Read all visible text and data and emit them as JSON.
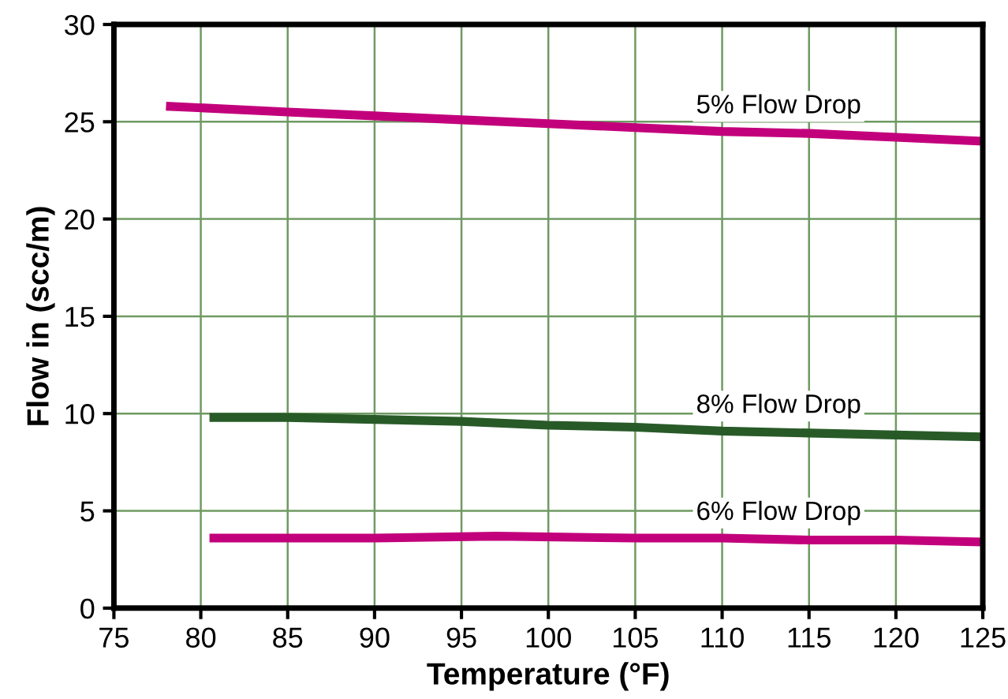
{
  "chart_data": {
    "type": "line",
    "xlabel": "Temperature (°F)",
    "ylabel": "Flow in (scc/m)",
    "xlim": [
      75,
      125
    ],
    "xticks": [
      75,
      80,
      85,
      90,
      95,
      100,
      105,
      110,
      115,
      120,
      125
    ],
    "ylim": [
      0,
      30
    ],
    "yticks": [
      0,
      5,
      10,
      15,
      20,
      25,
      30
    ],
    "grid": true,
    "legend": false,
    "series": [
      {
        "name": "5% Flow Drop",
        "color": "#c2007b",
        "x": [
          78,
          85,
          90,
          95,
          100,
          105,
          110,
          115,
          120,
          125
        ],
        "values": [
          25.8,
          25.5,
          25.3,
          25.1,
          24.9,
          24.7,
          24.5,
          24.4,
          24.2,
          24.0
        ]
      },
      {
        "name": "8% Flow Drop",
        "color": "#285a28",
        "x": [
          80.5,
          85,
          90,
          95,
          100,
          105,
          110,
          115,
          120,
          125
        ],
        "values": [
          9.8,
          9.8,
          9.7,
          9.6,
          9.4,
          9.3,
          9.1,
          9.0,
          8.9,
          8.8
        ]
      },
      {
        "name": "6% Flow Drop",
        "color": "#c2007b",
        "x": [
          80.5,
          90,
          97,
          105,
          110,
          115,
          120,
          125
        ],
        "values": [
          3.6,
          3.6,
          3.7,
          3.6,
          3.6,
          3.5,
          3.5,
          3.4
        ]
      }
    ]
  }
}
